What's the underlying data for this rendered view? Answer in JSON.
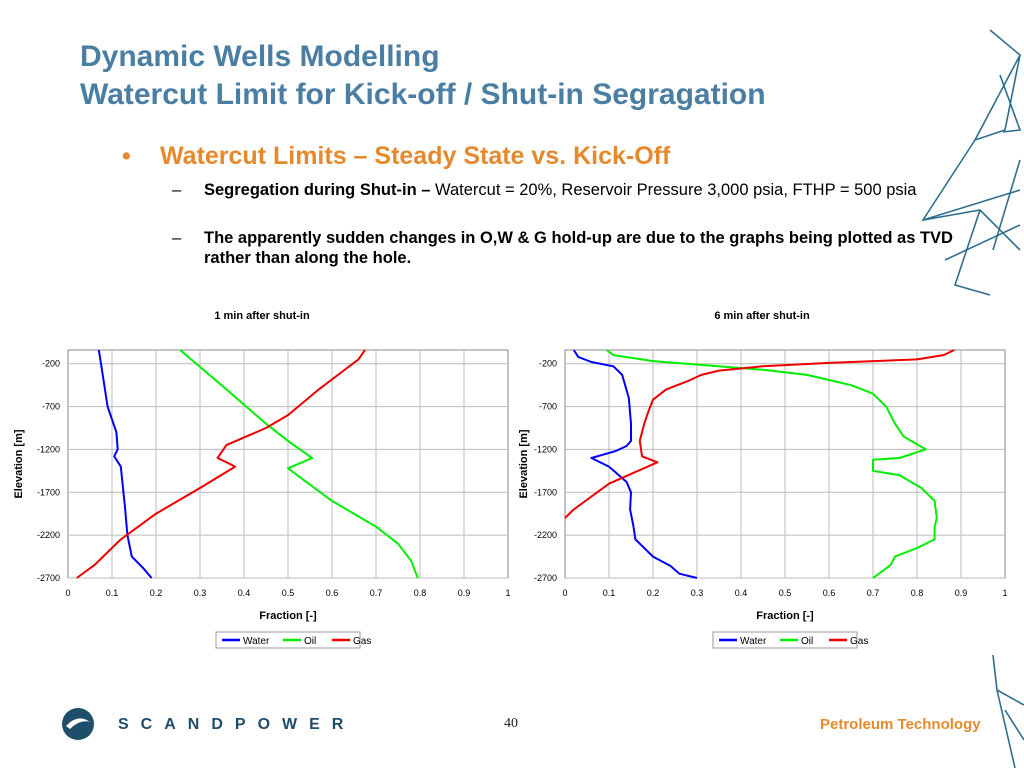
{
  "slide": {
    "title_line1": "Dynamic Wells Modelling",
    "title_line2": "Watercut Limit for Kick-off / Shut-in Segragation",
    "bullet": "Watercut Limits – Steady State vs. Kick-Off",
    "sub1_bold": "Segregation during Shut-in –",
    "sub1_rest": " Watercut = 20%, Reservoir Pressure 3,000 psia, FTHP = 500 psia",
    "sub2_bold": "The apparently sudden changes in O,W & G hold-up are due to the graphs being plotted as TVD rather than along the hole.",
    "bullet_glyph": "•",
    "dash_glyph": "–"
  },
  "footer": {
    "brand": "SCANDPOWER",
    "page_number": "40",
    "right_label": "Petroleum Technology"
  },
  "colors": {
    "title": "#4a7ea3",
    "accent": "#e58a2c",
    "water": "#0000ff",
    "oil": "#00ee00",
    "gas": "#ee0000"
  },
  "chart_data": [
    {
      "type": "line",
      "title": "1 min after shut-in",
      "xlabel": "Fraction [-]",
      "ylabel": "Elevation [m]",
      "xlim": [
        0,
        1
      ],
      "ylim": [
        -2700,
        -40
      ],
      "xticks": [
        "0",
        "0.1",
        "0.2",
        "0.3",
        "0.4",
        "0.5",
        "0.6",
        "0.7",
        "0.8",
        "0.9",
        "1"
      ],
      "yticks": [
        "-200",
        "-700",
        "-1200",
        "-1700",
        "-2200",
        "-2700"
      ],
      "grid": true,
      "legend": "bottom",
      "series": [
        {
          "name": "Water",
          "points": [
            [
              0.07,
              -40
            ],
            [
              0.075,
              -200
            ],
            [
              0.09,
              -700
            ],
            [
              0.11,
              -1000
            ],
            [
              0.113,
              -1200
            ],
            [
              0.105,
              -1280
            ],
            [
              0.12,
              -1400
            ],
            [
              0.13,
              -1900
            ],
            [
              0.135,
              -2200
            ],
            [
              0.145,
              -2450
            ],
            [
              0.17,
              -2580
            ],
            [
              0.19,
              -2700
            ]
          ]
        },
        {
          "name": "Oil",
          "points": [
            [
              0.255,
              -40
            ],
            [
              0.28,
              -150
            ],
            [
              0.36,
              -500
            ],
            [
              0.45,
              -900
            ],
            [
              0.5,
              -1100
            ],
            [
              0.555,
              -1300
            ],
            [
              0.5,
              -1420
            ],
            [
              0.6,
              -1800
            ],
            [
              0.7,
              -2100
            ],
            [
              0.75,
              -2300
            ],
            [
              0.78,
              -2500
            ],
            [
              0.795,
              -2700
            ]
          ]
        },
        {
          "name": "Gas",
          "points": [
            [
              0.675,
              -40
            ],
            [
              0.66,
              -150
            ],
            [
              0.57,
              -500
            ],
            [
              0.5,
              -800
            ],
            [
              0.45,
              -950
            ],
            [
              0.36,
              -1150
            ],
            [
              0.34,
              -1300
            ],
            [
              0.38,
              -1400
            ],
            [
              0.3,
              -1650
            ],
            [
              0.2,
              -1950
            ],
            [
              0.12,
              -2250
            ],
            [
              0.06,
              -2550
            ],
            [
              0.02,
              -2700
            ]
          ]
        }
      ]
    },
    {
      "type": "line",
      "title": "6 min after shut-in",
      "xlabel": "Fraction [-]",
      "ylabel": "Elevation [m]",
      "xlim": [
        0,
        1
      ],
      "ylim": [
        -2700,
        -40
      ],
      "xticks": [
        "0",
        "0.1",
        "0.2",
        "0.3",
        "0.4",
        "0.5",
        "0.6",
        "0.7",
        "0.8",
        "0.9",
        "1"
      ],
      "yticks": [
        "-200",
        "-700",
        "-1200",
        "-1700",
        "-2200",
        "-2700"
      ],
      "grid": true,
      "legend": "bottom",
      "series": [
        {
          "name": "Water",
          "points": [
            [
              0.02,
              -40
            ],
            [
              0.03,
              -120
            ],
            [
              0.06,
              -180
            ],
            [
              0.11,
              -230
            ],
            [
              0.13,
              -330
            ],
            [
              0.145,
              -600
            ],
            [
              0.15,
              -900
            ],
            [
              0.15,
              -1100
            ],
            [
              0.14,
              -1160
            ],
            [
              0.115,
              -1220
            ],
            [
              0.06,
              -1300
            ],
            [
              0.1,
              -1400
            ],
            [
              0.14,
              -1580
            ],
            [
              0.15,
              -1700
            ],
            [
              0.148,
              -1900
            ],
            [
              0.155,
              -2080
            ],
            [
              0.16,
              -2250
            ],
            [
              0.2,
              -2450
            ],
            [
              0.24,
              -2560
            ],
            [
              0.26,
              -2650
            ],
            [
              0.3,
              -2700
            ]
          ]
        },
        {
          "name": "Oil",
          "points": [
            [
              0.095,
              -40
            ],
            [
              0.11,
              -100
            ],
            [
              0.2,
              -170
            ],
            [
              0.45,
              -270
            ],
            [
              0.55,
              -330
            ],
            [
              0.65,
              -450
            ],
            [
              0.7,
              -550
            ],
            [
              0.73,
              -700
            ],
            [
              0.75,
              -900
            ],
            [
              0.77,
              -1050
            ],
            [
              0.82,
              -1200
            ],
            [
              0.76,
              -1300
            ],
            [
              0.7,
              -1320
            ],
            [
              0.7,
              -1450
            ],
            [
              0.76,
              -1500
            ],
            [
              0.81,
              -1650
            ],
            [
              0.84,
              -1800
            ],
            [
              0.845,
              -2000
            ],
            [
              0.84,
              -2100
            ],
            [
              0.84,
              -2250
            ],
            [
              0.8,
              -2350
            ],
            [
              0.75,
              -2450
            ],
            [
              0.74,
              -2550
            ],
            [
              0.7,
              -2700
            ]
          ]
        },
        {
          "name": "Gas",
          "points": [
            [
              0.885,
              -40
            ],
            [
              0.86,
              -100
            ],
            [
              0.8,
              -150
            ],
            [
              0.6,
              -190
            ],
            [
              0.45,
              -230
            ],
            [
              0.35,
              -280
            ],
            [
              0.31,
              -330
            ],
            [
              0.28,
              -400
            ],
            [
              0.23,
              -500
            ],
            [
              0.2,
              -620
            ],
            [
              0.19,
              -750
            ],
            [
              0.18,
              -900
            ],
            [
              0.17,
              -1100
            ],
            [
              0.175,
              -1280
            ],
            [
              0.21,
              -1350
            ],
            [
              0.1,
              -1600
            ],
            [
              0.02,
              -1900
            ],
            [
              0.0,
              -2000
            ]
          ]
        }
      ]
    }
  ]
}
